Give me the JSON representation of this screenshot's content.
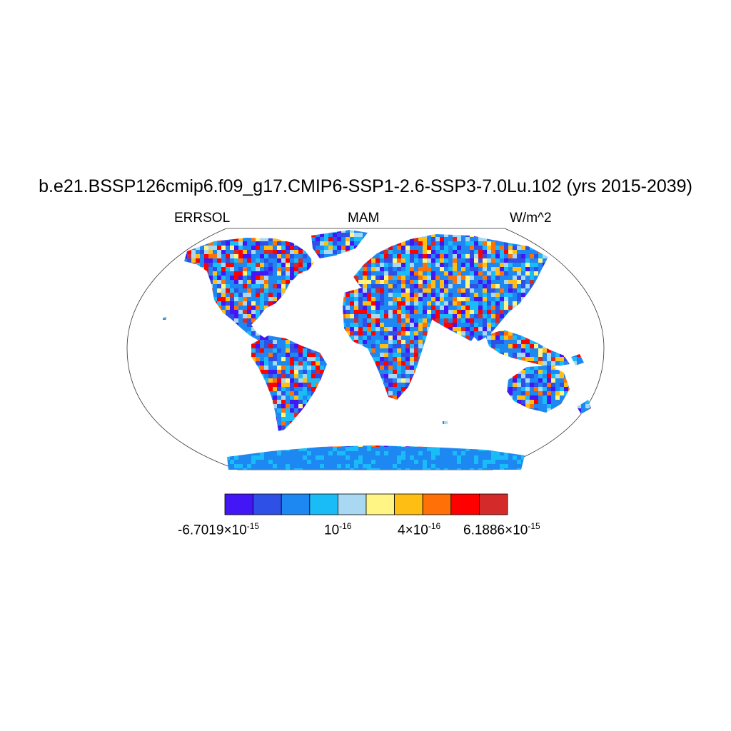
{
  "title": "b.e21.BSSP126cmip6.f09_g17.CMIP6-SSP1-2.6-SSP3-7.0Lu.102 (yrs 2015-2039)",
  "variable": "ERRSOL",
  "season": "MAM",
  "units": "W/m^2",
  "colorbar": {
    "colors": [
      "#4316f5",
      "#2f50e6",
      "#1e88f2",
      "#19bcf7",
      "#a8d8f2",
      "#fff585",
      "#ffbe14",
      "#ff7007",
      "#ff0000",
      "#d42a2a"
    ],
    "labels": [
      {
        "mantissa": "-6.7019",
        "times": "×",
        "base": "10",
        "exp": "-15"
      },
      {
        "mantissa": "",
        "times": "",
        "base": "10",
        "exp": "-16"
      },
      {
        "mantissa": "4",
        "times": "×",
        "base": "10",
        "exp": "-16"
      },
      {
        "mantissa": "6.1886",
        "times": "×",
        "base": "10",
        "exp": "-15"
      }
    ]
  },
  "map": {
    "projection": "robinson",
    "field": "ERRSOL noise over land",
    "colors": {
      "land_dominant": "#1e88f2",
      "ocean": "#ffffff"
    }
  }
}
